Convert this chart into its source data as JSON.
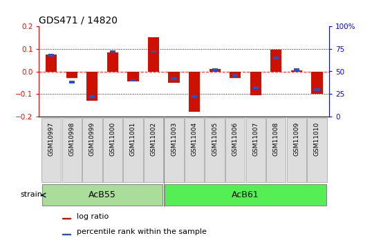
{
  "title": "GDS471 / 14820",
  "samples": [
    "GSM10997",
    "GSM10998",
    "GSM10999",
    "GSM11000",
    "GSM11001",
    "GSM11002",
    "GSM11003",
    "GSM11004",
    "GSM11005",
    "GSM11006",
    "GSM11007",
    "GSM11008",
    "GSM11009",
    "GSM11010"
  ],
  "log_ratio": [
    0.075,
    -0.03,
    -0.13,
    0.085,
    -0.045,
    0.15,
    -0.05,
    -0.18,
    0.01,
    -0.03,
    -0.105,
    0.095,
    0.005,
    -0.1
  ],
  "percentile_rank": [
    68,
    38,
    22,
    72,
    40,
    72,
    42,
    22,
    52,
    46,
    32,
    65,
    52,
    30
  ],
  "groups": [
    {
      "name": "AcB55",
      "start": 0,
      "end": 5,
      "color": "#aadd99"
    },
    {
      "name": "AcB61",
      "start": 6,
      "end": 13,
      "color": "#55ee55"
    }
  ],
  "group_separator": 5.5,
  "ylim_left": [
    -0.2,
    0.2
  ],
  "ylim_right": [
    0,
    100
  ],
  "yticks_left": [
    -0.2,
    -0.1,
    0.0,
    0.1,
    0.2
  ],
  "yticks_right": [
    0,
    25,
    50,
    75,
    100
  ],
  "ytick_labels_right": [
    "0",
    "25",
    "50",
    "75",
    "100%"
  ],
  "bar_color_red": "#cc1100",
  "bar_color_blue": "#2255cc",
  "bar_width": 0.55,
  "blue_bar_width": 0.28,
  "blue_bar_height": 0.011,
  "strain_label": "strain",
  "legend_red": "log ratio",
  "legend_blue": "percentile rank within the sample",
  "title_fontsize": 10,
  "tick_fontsize": 7.5,
  "sample_fontsize": 6.5,
  "group_label_fontsize": 9
}
